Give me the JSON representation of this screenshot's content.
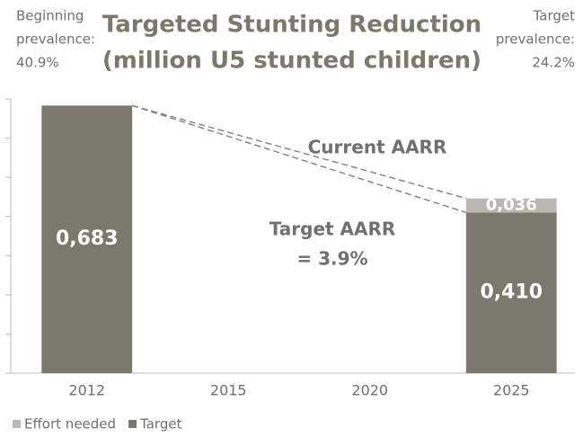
{
  "chart_data": {
    "type": "bar",
    "title_lines": [
      "Targeted Stunting Reduction",
      "(million U5 stunted children)"
    ],
    "left_note": [
      "Beginning",
      "prevalence:",
      "40.9%"
    ],
    "right_note": [
      "Target",
      "prevalence:",
      "24.2%"
    ],
    "annotations": {
      "current": "Current AARR",
      "target": [
        "Target AARR",
        "= 3.9%"
      ]
    },
    "categories": [
      "2012",
      "2015",
      "2020",
      "2025"
    ],
    "series": [
      {
        "name": "Target",
        "color": "#7b786d",
        "values": [
          0.683,
          null,
          null,
          0.41
        ],
        "value_labels": [
          "0,683",
          null,
          null,
          "0,410"
        ]
      },
      {
        "name": "Effort needed",
        "color": "#b9b8b3",
        "values": [
          null,
          null,
          null,
          0.036
        ],
        "value_labels": [
          null,
          null,
          null,
          "0,036"
        ]
      }
    ],
    "ylim": [
      0,
      0.7
    ],
    "yticks": [
      0,
      0.1,
      0.2,
      0.3,
      0.4,
      0.5,
      0.6,
      0.7
    ]
  }
}
